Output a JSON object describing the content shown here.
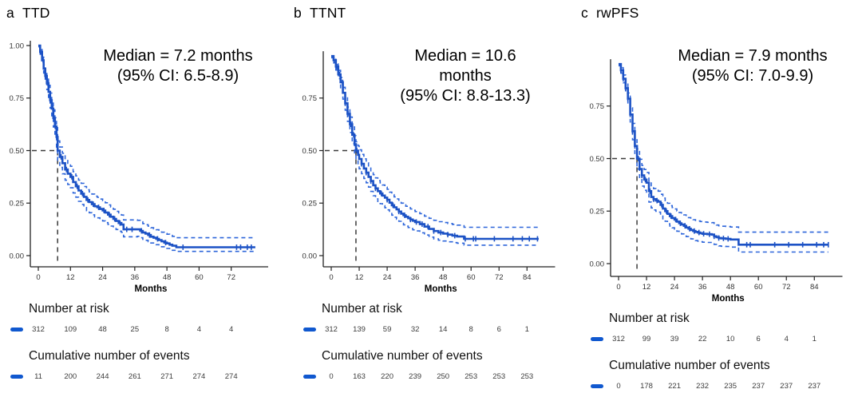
{
  "figure": {
    "background": "#ffffff",
    "curve_color": "#1c52c5",
    "ci_color": "#2e66da",
    "marker_color": "#1058cf",
    "reference_line_color": "#3a3a3a",
    "axis_color": "#222222"
  },
  "chart_data": [
    {
      "type": "line",
      "subtype": "kaplan-meier",
      "panel_letter": "a",
      "title": "TTD",
      "annotation_lines": [
        "Median = 7.2 months",
        "(95% CI: 6.5-8.9)"
      ],
      "median_months": 7.2,
      "ci_95": "6.5-8.9",
      "xlabel": "Months",
      "x_ticks": [
        0,
        12,
        24,
        36,
        48,
        60,
        72
      ],
      "x_max": 84,
      "y_ticks": [
        1.0,
        0.75,
        0.5,
        0.25,
        0.0
      ],
      "y_top": 1.0,
      "ylim": [
        0,
        1
      ],
      "curve": [
        [
          0,
          1.0
        ],
        [
          0.7,
          0.97
        ],
        [
          1.4,
          0.93
        ],
        [
          2,
          0.89
        ],
        [
          2.6,
          0.855
        ],
        [
          3.2,
          0.82
        ],
        [
          3.8,
          0.78
        ],
        [
          4.4,
          0.74
        ],
        [
          5,
          0.7
        ],
        [
          5.6,
          0.655
        ],
        [
          6.2,
          0.615
        ],
        [
          6.8,
          0.565
        ],
        [
          7.2,
          0.5
        ],
        [
          8,
          0.47
        ],
        [
          9,
          0.44
        ],
        [
          10,
          0.41
        ],
        [
          11,
          0.39
        ],
        [
          12,
          0.375
        ],
        [
          13,
          0.35
        ],
        [
          14,
          0.33
        ],
        [
          15,
          0.31
        ],
        [
          16,
          0.295
        ],
        [
          17,
          0.28
        ],
        [
          18,
          0.265
        ],
        [
          19,
          0.255
        ],
        [
          20,
          0.245
        ],
        [
          21,
          0.235
        ],
        [
          22,
          0.23
        ],
        [
          23,
          0.222
        ],
        [
          24,
          0.215
        ],
        [
          25,
          0.205
        ],
        [
          26,
          0.195
        ],
        [
          27,
          0.185
        ],
        [
          28,
          0.175
        ],
        [
          29,
          0.165
        ],
        [
          30,
          0.155
        ],
        [
          31,
          0.148
        ],
        [
          31.8,
          0.125
        ],
        [
          37,
          0.125
        ],
        [
          38,
          0.118
        ],
        [
          39,
          0.11
        ],
        [
          40,
          0.105
        ],
        [
          41,
          0.098
        ],
        [
          42,
          0.09
        ],
        [
          43,
          0.085
        ],
        [
          44,
          0.08
        ],
        [
          45,
          0.074
        ],
        [
          46,
          0.068
        ],
        [
          47,
          0.062
        ],
        [
          48,
          0.058
        ],
        [
          49,
          0.052
        ],
        [
          50,
          0.047
        ],
        [
          51.5,
          0.04
        ],
        [
          81,
          0.04
        ]
      ],
      "censor_times": [
        0.9,
        1.8,
        2.7,
        3.6,
        4.5,
        5.4,
        6.3,
        8.5,
        10.5,
        12.5,
        14.5,
        16.5,
        18.5,
        20.5,
        22.5,
        24.5,
        26.5,
        28.5,
        30.5,
        33,
        35,
        38.5,
        41.5,
        44.5,
        47.5,
        54,
        74,
        75.5,
        78,
        79.5
      ],
      "ci_delta": [
        [
          0,
          0.006,
          0.006
        ],
        [
          4,
          0.032,
          0.036
        ],
        [
          7.2,
          0.046,
          0.05
        ],
        [
          12,
          0.05,
          0.052
        ],
        [
          24,
          0.047,
          0.05
        ],
        [
          32,
          0.045,
          0.035
        ],
        [
          40,
          0.042,
          0.032
        ],
        [
          51.5,
          0.045,
          0.02
        ],
        [
          81,
          0.045,
          0.02
        ]
      ],
      "at_risk_label": "Number at risk",
      "at_risk_values": [
        312,
        109,
        48,
        25,
        8,
        4,
        4
      ],
      "events_label": "Cumulative number of events",
      "events_values": [
        11,
        200,
        244,
        261,
        271,
        274,
        274
      ]
    },
    {
      "type": "line",
      "subtype": "kaplan-meier",
      "panel_letter": "b",
      "title": "TTNT",
      "annotation_lines": [
        "Median = 10.6",
        "months",
        "(95% CI: 8.8-13.3)"
      ],
      "median_months": 10.6,
      "ci_95": "8.8-13.3",
      "xlabel": "Months",
      "x_ticks": [
        0,
        12,
        24,
        36,
        48,
        60,
        72,
        84
      ],
      "x_max": 94,
      "y_ticks": [
        0.75,
        0.5,
        0.25,
        0.0
      ],
      "y_top": 0.95,
      "ylim": [
        0,
        1
      ],
      "curve": [
        [
          0,
          0.95
        ],
        [
          1,
          0.93
        ],
        [
          2,
          0.9
        ],
        [
          3,
          0.863
        ],
        [
          4,
          0.825
        ],
        [
          5,
          0.775
        ],
        [
          6,
          0.725
        ],
        [
          7,
          0.675
        ],
        [
          8,
          0.625
        ],
        [
          9,
          0.575
        ],
        [
          10,
          0.53
        ],
        [
          10.6,
          0.5
        ],
        [
          11.5,
          0.48
        ],
        [
          12,
          0.46
        ],
        [
          13,
          0.437
        ],
        [
          14,
          0.415
        ],
        [
          15,
          0.395
        ],
        [
          16,
          0.375
        ],
        [
          17,
          0.355
        ],
        [
          18,
          0.335
        ],
        [
          19,
          0.32
        ],
        [
          20,
          0.307
        ],
        [
          21,
          0.296
        ],
        [
          22,
          0.286
        ],
        [
          23,
          0.276
        ],
        [
          24,
          0.266
        ],
        [
          25,
          0.252
        ],
        [
          26,
          0.24
        ],
        [
          27,
          0.23
        ],
        [
          28,
          0.22
        ],
        [
          29,
          0.21
        ],
        [
          30,
          0.2
        ],
        [
          31,
          0.192
        ],
        [
          32,
          0.185
        ],
        [
          33,
          0.178
        ],
        [
          34,
          0.172
        ],
        [
          35,
          0.166
        ],
        [
          36,
          0.16
        ],
        [
          38,
          0.15
        ],
        [
          40,
          0.138
        ],
        [
          42,
          0.127
        ],
        [
          44,
          0.117
        ],
        [
          46,
          0.11
        ],
        [
          48,
          0.105
        ],
        [
          50,
          0.1
        ],
        [
          52,
          0.095
        ],
        [
          54,
          0.091
        ],
        [
          57,
          0.08
        ],
        [
          89,
          0.08
        ]
      ],
      "censor_times": [
        1.2,
        2.4,
        3.6,
        4.8,
        6,
        7.2,
        8.4,
        9.6,
        11,
        13,
        15,
        17,
        19,
        21.5,
        24,
        26.5,
        29,
        31.5,
        34,
        36.5,
        39,
        41.5,
        44,
        47,
        50,
        53,
        57.5,
        61,
        62,
        70,
        78,
        82,
        85,
        88.5
      ],
      "ci_delta": [
        [
          0,
          0.008,
          0.008
        ],
        [
          5,
          0.026,
          0.03
        ],
        [
          10.6,
          0.042,
          0.046
        ],
        [
          18,
          0.05,
          0.05
        ],
        [
          30,
          0.05,
          0.046
        ],
        [
          40,
          0.05,
          0.04
        ],
        [
          57,
          0.055,
          0.03
        ],
        [
          89,
          0.055,
          0.03
        ]
      ],
      "at_risk_label": "Number at risk",
      "at_risk_values": [
        312,
        139,
        59,
        32,
        14,
        8,
        6,
        1
      ],
      "events_label": "Cumulative number of events",
      "events_values": [
        0,
        163,
        220,
        239,
        250,
        253,
        253,
        253
      ]
    },
    {
      "type": "line",
      "subtype": "kaplan-meier",
      "panel_letter": "c",
      "title": "rwPFS",
      "annotation_lines": [
        "Median = 7.9 months",
        "(95% CI: 7.0-9.9)"
      ],
      "median_months": 7.9,
      "ci_95": "7.0-9.9",
      "xlabel": "Months",
      "x_ticks": [
        0,
        12,
        24,
        36,
        48,
        60,
        72,
        84
      ],
      "x_max": 94,
      "y_ticks": [
        0.75,
        0.5,
        0.25,
        0.0
      ],
      "y_top": 0.95,
      "ylim": [
        0,
        1
      ],
      "curve": [
        [
          0,
          0.95
        ],
        [
          1,
          0.92
        ],
        [
          2,
          0.88
        ],
        [
          3,
          0.835
        ],
        [
          4,
          0.785
        ],
        [
          5,
          0.71
        ],
        [
          6,
          0.63
        ],
        [
          7,
          0.56
        ],
        [
          7.9,
          0.5
        ],
        [
          9,
          0.45
        ],
        [
          10,
          0.42
        ],
        [
          11,
          0.4
        ],
        [
          12,
          0.385
        ],
        [
          13,
          0.345
        ],
        [
          14,
          0.317
        ],
        [
          15,
          0.307
        ],
        [
          16,
          0.3
        ],
        [
          17,
          0.295
        ],
        [
          18,
          0.28
        ],
        [
          19,
          0.262
        ],
        [
          20,
          0.25
        ],
        [
          21,
          0.237
        ],
        [
          22,
          0.226
        ],
        [
          23,
          0.217
        ],
        [
          24,
          0.21
        ],
        [
          25,
          0.2
        ],
        [
          26,
          0.192
        ],
        [
          27,
          0.186
        ],
        [
          28,
          0.18
        ],
        [
          29,
          0.172
        ],
        [
          30,
          0.166
        ],
        [
          31,
          0.16
        ],
        [
          32,
          0.155
        ],
        [
          33,
          0.151
        ],
        [
          34,
          0.148
        ],
        [
          35,
          0.145
        ],
        [
          36,
          0.142
        ],
        [
          38,
          0.14
        ],
        [
          40,
          0.138
        ],
        [
          41,
          0.13
        ],
        [
          42,
          0.126
        ],
        [
          43,
          0.122
        ],
        [
          44,
          0.12
        ],
        [
          46,
          0.118
        ],
        [
          48,
          0.115
        ],
        [
          51.5,
          0.09
        ],
        [
          90,
          0.09
        ]
      ],
      "censor_times": [
        1,
        2,
        3,
        4,
        5,
        6,
        7,
        8.5,
        10,
        11.5,
        13.5,
        15,
        16.5,
        18.5,
        20.5,
        22.5,
        24.5,
        26.5,
        28.5,
        30.5,
        32.5,
        34.5,
        36.5,
        39,
        41,
        43,
        45,
        47,
        55,
        56.5,
        67,
        73,
        79,
        85,
        88,
        90
      ],
      "ci_delta": [
        [
          0,
          0.008,
          0.008
        ],
        [
          5,
          0.032,
          0.036
        ],
        [
          7.9,
          0.046,
          0.05
        ],
        [
          14,
          0.05,
          0.052
        ],
        [
          24,
          0.05,
          0.046
        ],
        [
          36,
          0.056,
          0.04
        ],
        [
          51.5,
          0.06,
          0.035
        ],
        [
          90,
          0.06,
          0.035
        ]
      ],
      "at_risk_label": "Number at risk",
      "at_risk_values": [
        312,
        99,
        39,
        22,
        10,
        6,
        4,
        1
      ],
      "events_label": "Cumulative number of events",
      "events_values": [
        0,
        178,
        221,
        232,
        235,
        237,
        237,
        237
      ]
    }
  ]
}
